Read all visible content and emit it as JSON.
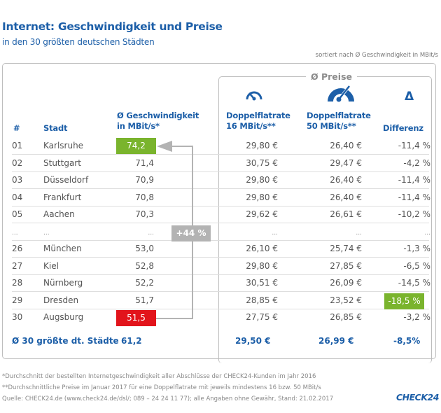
{
  "header": {
    "title": "Internet: Geschwindigkeit und Preise",
    "subtitle": "in den 30 größten deutschen Städten",
    "sort_note": "sortiert nach Ø Geschwindigkeit in MBit/s"
  },
  "columns": {
    "rank": "#",
    "city": "Stadt",
    "speed_line1": "Ø Geschwindigkeit",
    "speed_line2": "in MBit/s*",
    "price_group": "Ø Preise",
    "p16_line1": "Doppelflatrate",
    "p16_line2": "16 MBit/s**",
    "p50_line1": "Doppelflatrate",
    "p50_line2": "50 MBit/s**",
    "diff_symbol": "Δ",
    "diff": "Differenz"
  },
  "icons": {
    "p16": "speedometer-low-icon",
    "p50": "speedometer-high-icon",
    "diff": "delta-icon"
  },
  "rows": [
    {
      "rank": "01",
      "city": "Karlsruhe",
      "speed": "74,2",
      "p16": "29,80 €",
      "p50": "26,40 €",
      "diff": "-11,4 %"
    },
    {
      "rank": "02",
      "city": "Stuttgart",
      "speed": "71,4",
      "p16": "30,75 €",
      "p50": "29,47 €",
      "diff": "-4,2 %"
    },
    {
      "rank": "03",
      "city": "Düsseldorf",
      "speed": "70,9",
      "p16": "29,80 €",
      "p50": "26,40 €",
      "diff": "-11,4 %"
    },
    {
      "rank": "04",
      "city": "Frankfurt",
      "speed": "70,8",
      "p16": "29,80 €",
      "p50": "26,40 €",
      "diff": "-11,4 %"
    },
    {
      "rank": "05",
      "city": "Aachen",
      "speed": "70,3",
      "p16": "29,62 €",
      "p50": "26,61 €",
      "diff": "-10,2 %"
    },
    {
      "rank": "...",
      "city": "...",
      "speed": "...",
      "p16": "...",
      "p50": "...",
      "diff": "..."
    },
    {
      "rank": "26",
      "city": "München",
      "speed": "53,0",
      "p16": "26,10 €",
      "p50": "25,74 €",
      "diff": "-1,3 %"
    },
    {
      "rank": "27",
      "city": "Kiel",
      "speed": "52,8",
      "p16": "29,80 €",
      "p50": "27,85 €",
      "diff": "-6,5 %"
    },
    {
      "rank": "28",
      "city": "Nürnberg",
      "speed": "52,2",
      "p16": "30,51 €",
      "p50": "26,09 €",
      "diff": "-14,5 %"
    },
    {
      "rank": "29",
      "city": "Dresden",
      "speed": "51,7",
      "p16": "28,85 €",
      "p50": "23,52 €",
      "diff": "-18,5 %"
    },
    {
      "rank": "30",
      "city": "Augsburg",
      "speed": "51,5",
      "p16": "27,75 €",
      "p50": "26,85 €",
      "diff": "-3,2 %"
    }
  ],
  "summary": {
    "label": "Ø 30 größte dt. Städte",
    "speed": "61,2",
    "p16": "29,50 €",
    "p50": "26,99 €",
    "diff": "-8,5%"
  },
  "annotation": {
    "badge": "+44 %",
    "from": "Augsburg",
    "to": "Karlsruhe"
  },
  "highlights": {
    "max_speed_color": "#7ab42d",
    "min_speed_color": "#e2141b",
    "max_diff_color": "#7ab42d",
    "accent": "#1d5fa8"
  },
  "footnotes": [
    "*Durchschnitt der bestellten Internetgeschwindigkeit aller Abschlüsse der CHECK24-Kunden im Jahr 2016",
    "**Durchschnittliche Preise im Januar 2017 für eine Doppelflatrate mit jeweils mindestens 16 bzw. 50 MBit/s",
    "Quelle: CHECK24.de (www.check24.de/dsl/; 089 – 24 24 11 77); alle Angaben ohne Gewähr, Stand: 21.02.2017"
  ],
  "logo": "CHECK24",
  "chart_data": {
    "type": "table",
    "title": "Internet: Geschwindigkeit und Preise",
    "subtitle": "in den 30 größten deutschen Städten",
    "columns": [
      "#",
      "Stadt",
      "Ø Geschwindigkeit in MBit/s*",
      "Doppelflatrate 16 MBit/s**",
      "Doppelflatrate 50 MBit/s**",
      "Differenz"
    ],
    "rows": [
      [
        "01",
        "Karlsruhe",
        74.2,
        29.8,
        26.4,
        -11.4
      ],
      [
        "02",
        "Stuttgart",
        71.4,
        30.75,
        29.47,
        -4.2
      ],
      [
        "03",
        "Düsseldorf",
        70.9,
        29.8,
        26.4,
        -11.4
      ],
      [
        "04",
        "Frankfurt",
        70.8,
        29.8,
        26.4,
        -11.4
      ],
      [
        "05",
        "Aachen",
        70.3,
        29.62,
        26.61,
        -10.2
      ],
      [
        "26",
        "München",
        53.0,
        26.1,
        25.74,
        -1.3
      ],
      [
        "27",
        "Kiel",
        52.8,
        29.8,
        27.85,
        -6.5
      ],
      [
        "28",
        "Nürnberg",
        52.2,
        30.51,
        26.09,
        -14.5
      ],
      [
        "29",
        "Dresden",
        51.7,
        28.85,
        23.52,
        -18.5
      ],
      [
        "30",
        "Augsburg",
        51.5,
        27.75,
        26.85,
        -3.2
      ]
    ],
    "average": [
      "Ø 30 größte dt. Städte",
      61.2,
      29.5,
      26.99,
      -8.5
    ],
    "annotation": "+44 % (Augsburg → Karlsruhe)"
  }
}
